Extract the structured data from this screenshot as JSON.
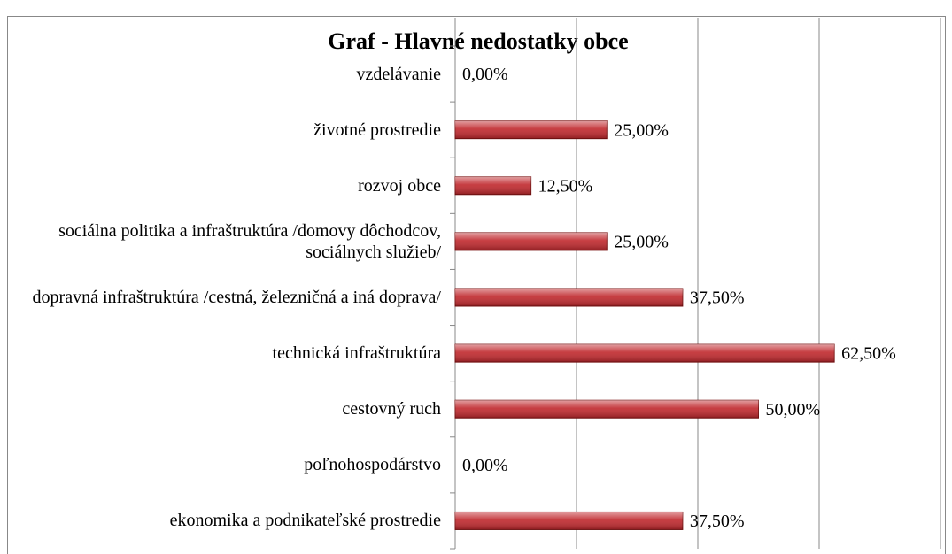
{
  "chart_data": {
    "type": "hbar",
    "title": "Graf - Hlavné nedostatky obce",
    "categories": [
      "vzdelávanie",
      "životné prostredie",
      "rozvoj obce",
      "sociálna politika a infraštruktúra /domovy dôchodcov, sociálnych služieb/",
      "dopravná infraštruktúra /cestná, železničná a iná doprava/",
      "technická infraštruktúra",
      "cestovný ruch",
      "poľnohospodárstvo",
      "ekonomika a podnikateľské prostredie"
    ],
    "values": [
      0,
      25,
      12.5,
      25,
      37.5,
      62.5,
      50,
      0,
      37.5
    ],
    "value_labels": [
      "0,00%",
      "25,00%",
      "12,50%",
      "25,00%",
      "37,50%",
      "62,50%",
      "50,00%",
      "0,00%",
      "37,50%"
    ],
    "color": "#c0282d",
    "xlim": [
      0,
      80
    ],
    "xticks": [
      0,
      20,
      40,
      60,
      80
    ],
    "grid": true
  }
}
